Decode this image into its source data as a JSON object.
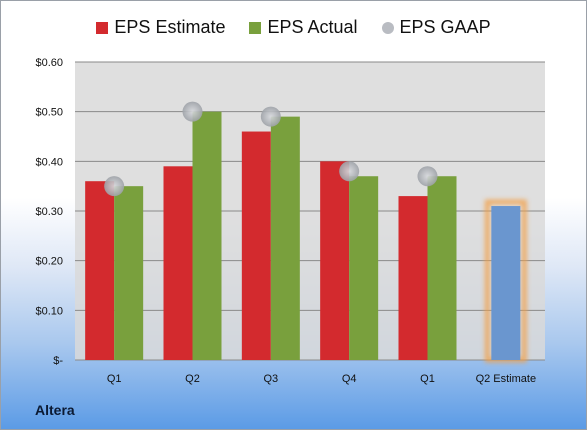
{
  "chart_data": {
    "type": "bar",
    "categories": [
      "Q1",
      "Q2",
      "Q3",
      "Q4",
      "Q1",
      "Q2 Estimate"
    ],
    "series": [
      {
        "name": "EPS Estimate",
        "kind": "bar",
        "color": "#d32a2e",
        "values": [
          0.36,
          0.39,
          0.46,
          0.4,
          0.33,
          null
        ]
      },
      {
        "name": "EPS Actual",
        "kind": "bar",
        "color": "#79a03d",
        "values": [
          0.35,
          0.5,
          0.49,
          0.37,
          0.37,
          null
        ]
      },
      {
        "name": "EPS GAAP",
        "kind": "marker",
        "color": "#b9bcc2",
        "values": [
          0.35,
          0.5,
          0.49,
          0.38,
          0.37,
          null
        ]
      }
    ],
    "estimate_bar": {
      "category": "Q2 Estimate",
      "value": 0.31,
      "color": "#6a96cf",
      "glow_color": "#f2a04a"
    },
    "yticks": [
      "$0.60",
      "$0.50",
      "$0.40",
      "$0.30",
      "$0.20",
      "$0.10",
      "$-"
    ],
    "ylim": [
      0,
      0.6
    ],
    "grid": true,
    "legend_position": "top"
  },
  "brand": {
    "name": "Altera"
  },
  "colors": {
    "plot_background": "#d9d9d9",
    "gridline": "#8a8a8a"
  }
}
